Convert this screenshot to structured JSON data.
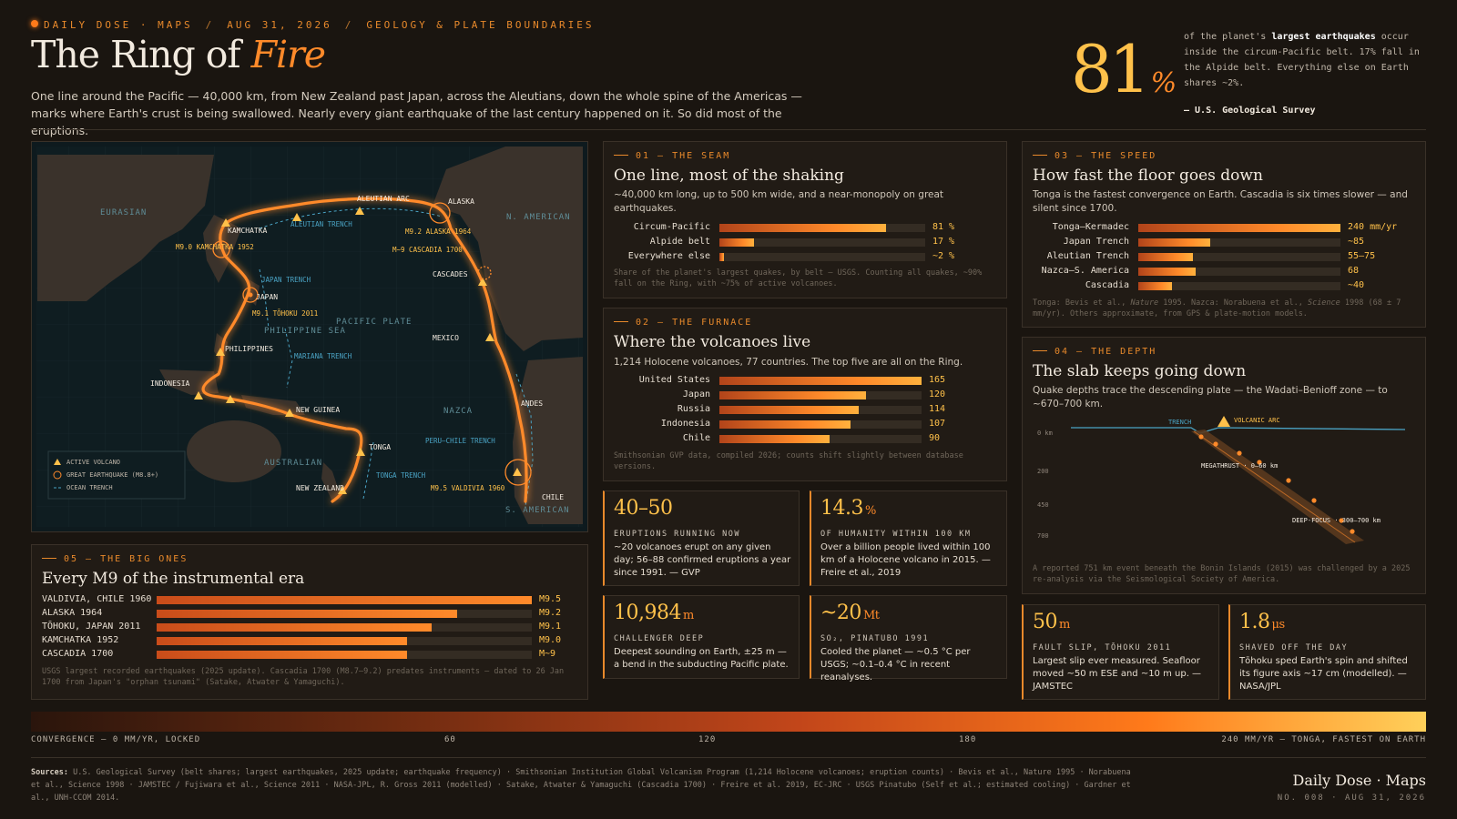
{
  "header": {
    "kicker_brand": "DAILY DOSE · MAPS",
    "kicker_date": "AUG 31, 2026",
    "kicker_topic": "GEOLOGY & PLATE BOUNDARIES",
    "title_main": "The Ring of ",
    "title_accent": "Fire",
    "intro": "One line around the Pacific — 40,000 km, from New Zealand past Japan, across the Aleutians, down the whole spine of the Americas — marks where Earth's crust is being swallowed. Nearly every giant earthquake of the last century happened on it. So did most of the eruptions.",
    "hero_value": "81",
    "hero_unit": "%",
    "hero_text_pre": "of the planet's ",
    "hero_text_bold": "largest earthquakes",
    "hero_text_post": " occur inside the circum-Pacific belt. 17% fall in the Alpide belt. Everything else on Earth shares ~2%.",
    "hero_source": "— U.S. Geological Survey"
  },
  "map": {
    "plates": {
      "eurasian": "EURASIAN",
      "n_american": "N. AMERICAN",
      "pacific": "PACIFIC PLATE",
      "philippine": "PHILIPPINE SEA",
      "nazca": "NAZCA",
      "australian": "AUSTRALIAN",
      "s_american": "S. AMERICAN"
    },
    "places": {
      "kamchatka": "KAMCHATKA",
      "aleutian_arc": "ALEUTIAN ARC",
      "alaska": "ALASKA",
      "japan": "JAPAN",
      "cascades": "CASCADES",
      "philippines": "PHILIPPINES",
      "mexico": "MEXICO",
      "indonesia": "INDONESIA",
      "new_guinea": "NEW GUINEA",
      "andes": "ANDES",
      "tonga": "TONGA",
      "chile": "CHILE",
      "new_zealand": "NEW ZEALAND"
    },
    "quakes": {
      "kamchatka": "M9.0 KAMCHATKA 1952",
      "alaska": "M9.2 ALASKA 1964",
      "cascadia": "M~9 CASCADIA 1700",
      "tohoku": "M9.1 TŌHOKU 2011",
      "valdivia": "M9.5 VALDIVIA 1960"
    },
    "trenches": {
      "aleutian": "ALEUTIAN TRENCH",
      "japan": "JAPAN TRENCH",
      "mariana": "MARIANA TRENCH",
      "peru_chile": "PERU–CHILE TRENCH",
      "tonga": "TONGA TRENCH"
    },
    "legend": {
      "volcano": "ACTIVE VOLCANO",
      "quake": "GREAT EARTHQUAKE (M8.8+)",
      "trench": "OCEAN TRENCH"
    }
  },
  "seam": {
    "eyebrow": "01 — THE SEAM",
    "title": "One line, most of the shaking",
    "desc": "~40,000 km long, up to 500 km wide, and a near-monopoly on great earthquakes.",
    "rows": [
      {
        "label": "Circum-Pacific",
        "value": 81,
        "display": "81 %"
      },
      {
        "label": "Alpide belt",
        "value": 17,
        "display": "17 %"
      },
      {
        "label": "Everywhere else",
        "value": 2,
        "display": "~2 %"
      }
    ],
    "max": 100,
    "note": "Share of the planet's largest quakes, by belt — USGS. Counting all quakes, ~90% fall on the Ring, with ~75% of active volcanoes."
  },
  "furnace": {
    "eyebrow": "02 — THE FURNACE",
    "title": "Where the volcanoes live",
    "desc": "1,214 Holocene volcanoes, 77 countries. The top five are all on the Ring.",
    "rows": [
      {
        "label": "United States",
        "value": 165,
        "display": "165"
      },
      {
        "label": "Japan",
        "value": 120,
        "display": "120"
      },
      {
        "label": "Russia",
        "value": 114,
        "display": "114"
      },
      {
        "label": "Indonesia",
        "value": 107,
        "display": "107"
      },
      {
        "label": "Chile",
        "value": 90,
        "display": "90"
      }
    ],
    "max": 165,
    "note": "Smithsonian GVP data, compiled 2026; counts shift slightly between database versions."
  },
  "speed": {
    "eyebrow": "03 — THE SPEED",
    "title": "How fast the floor goes down",
    "desc": "Tonga is the fastest convergence on Earth. Cascadia is six times slower — and silent since 1700.",
    "rows": [
      {
        "label": "Tonga–Kermadec",
        "value": 240,
        "display": "240 mm/yr"
      },
      {
        "label": "Japan Trench",
        "value": 85,
        "display": "~85"
      },
      {
        "label": "Aleutian Trench",
        "value": 65,
        "display": "55–75"
      },
      {
        "label": "Nazca–S. America",
        "value": 68,
        "display": "68"
      },
      {
        "label": "Cascadia",
        "value": 40,
        "display": "~40"
      }
    ],
    "max": 240,
    "note_pre": "Tonga: Bevis et al., ",
    "note_em1": "Nature",
    "note_mid": " 1995. Nazca: Norabuena et al., ",
    "note_em2": "Science",
    "note_post": " 1998 (68 ± 7 mm/yr). Others approximate, from GPS & plate-motion models."
  },
  "depth": {
    "eyebrow": "04 — THE DEPTH",
    "title": "The slab keeps going down",
    "desc": "Quake depths trace the descending plate — the Wadati–Benioff zone — to ~670–700 km.",
    "axis": [
      "0 km",
      "200",
      "450",
      "700"
    ],
    "trench_label": "TRENCH",
    "arc_label": "VOLCANIC ARC",
    "megathrust_label": "MEGATHRUST · 0–60 km",
    "deep_label": "DEEP-FOCUS · 300–700 km",
    "note": "A reported 751 km event beneath the Bonin Islands (2015) was challenged by a 2025 re-analysis via the Seismological Society of America."
  },
  "big_ones": {
    "eyebrow": "05 — THE BIG ONES",
    "title": "Every M9 of the instrumental era",
    "rows": [
      {
        "label": "VALDIVIA, CHILE 1960",
        "value": 9.5,
        "display": "M9.5"
      },
      {
        "label": "ALASKA 1964",
        "value": 9.2,
        "display": "M9.2"
      },
      {
        "label": "TŌHOKU, JAPAN 2011",
        "value": 9.1,
        "display": "M9.1"
      },
      {
        "label": "KAMCHATKA 1952",
        "value": 9.0,
        "display": "M9.0"
      },
      {
        "label": "CASCADIA 1700",
        "value": 9.0,
        "display": "M~9"
      }
    ],
    "min": 8.0,
    "max": 9.5,
    "note": "USGS largest recorded earthquakes (2025 update). Cascadia 1700 (M8.7–9.2) predates instruments — dated to 26 Jan 1700 from Japan's \"orphan tsunami\" (Satake, Atwater & Yamaguchi)."
  },
  "stats": {
    "eruptions": {
      "value": "40–50",
      "unit": "",
      "label": "ERUPTIONS RUNNING NOW",
      "text": "~20 volcanoes erupt on any given day; 56–88 confirmed eruptions a year since 1991. — GVP"
    },
    "humanity": {
      "value": "14.3",
      "unit": "%",
      "label": "OF HUMANITY WITHIN 100 KM",
      "text": "Over a billion people lived within 100 km of a Holocene volcano in 2015. — Freire et al., 2019"
    },
    "challenger": {
      "value": "10,984",
      "unit": "m",
      "label": "CHALLENGER DEEP",
      "text": "Deepest sounding on Earth, ±25 m — a bend in the subducting Pacific plate."
    },
    "pinatubo": {
      "value": "~20",
      "unit": "Mt",
      "label": "SO₂, PINATUBO 1991",
      "text": "Cooled the planet — ~0.5 °C per USGS; ~0.1–0.4 °C in recent reanalyses."
    },
    "slip": {
      "value": "50",
      "unit": "m",
      "label": "FAULT SLIP, TŌHOKU 2011",
      "text": "Largest slip ever measured. Seafloor moved ~50 m ESE and ~10 m up. — JAMSTEC"
    },
    "day": {
      "value": "1.8",
      "unit": "μs",
      "label": "SHAVED OFF THE DAY",
      "text": "Tōhoku sped Earth's spin and shifted its figure axis ~17 cm (modelled). — NASA/JPL"
    }
  },
  "scale": {
    "ticks": [
      "CONVERGENCE — 0 MM/YR, LOCKED",
      "60",
      "120",
      "180",
      "240 MM/YR — TONGA, FASTEST ON EARTH"
    ]
  },
  "footer": {
    "sources_label": "Sources:",
    "sources": "U.S. Geological Survey (belt shares; largest earthquakes, 2025 update; earthquake frequency) · Smithsonian Institution Global Volcanism Program (1,214 Holocene volcanoes; eruption counts) · Bevis et al., Nature 1995 · Norabuena et al., Science 1998 · JAMSTEC / Fujiwara et al., Science 2011 · NASA-JPL, R. Gross 2011 (modelled) · Satake, Atwater & Yamaguchi (Cascadia 1700) · Freire et al. 2019, EC-JRC · USGS Pinatubo (Self et al.; estimated cooling) · Gardner et al., UNH-CCOM 2014.",
    "brand": "Daily Dose · Maps",
    "issue": "NO. 008 · AUG 31, 2026"
  },
  "colors": {
    "accent": "#ff8a2a",
    "gold": "#ffc14a",
    "trench": "#4aa3c4",
    "background": "#1a1510"
  }
}
